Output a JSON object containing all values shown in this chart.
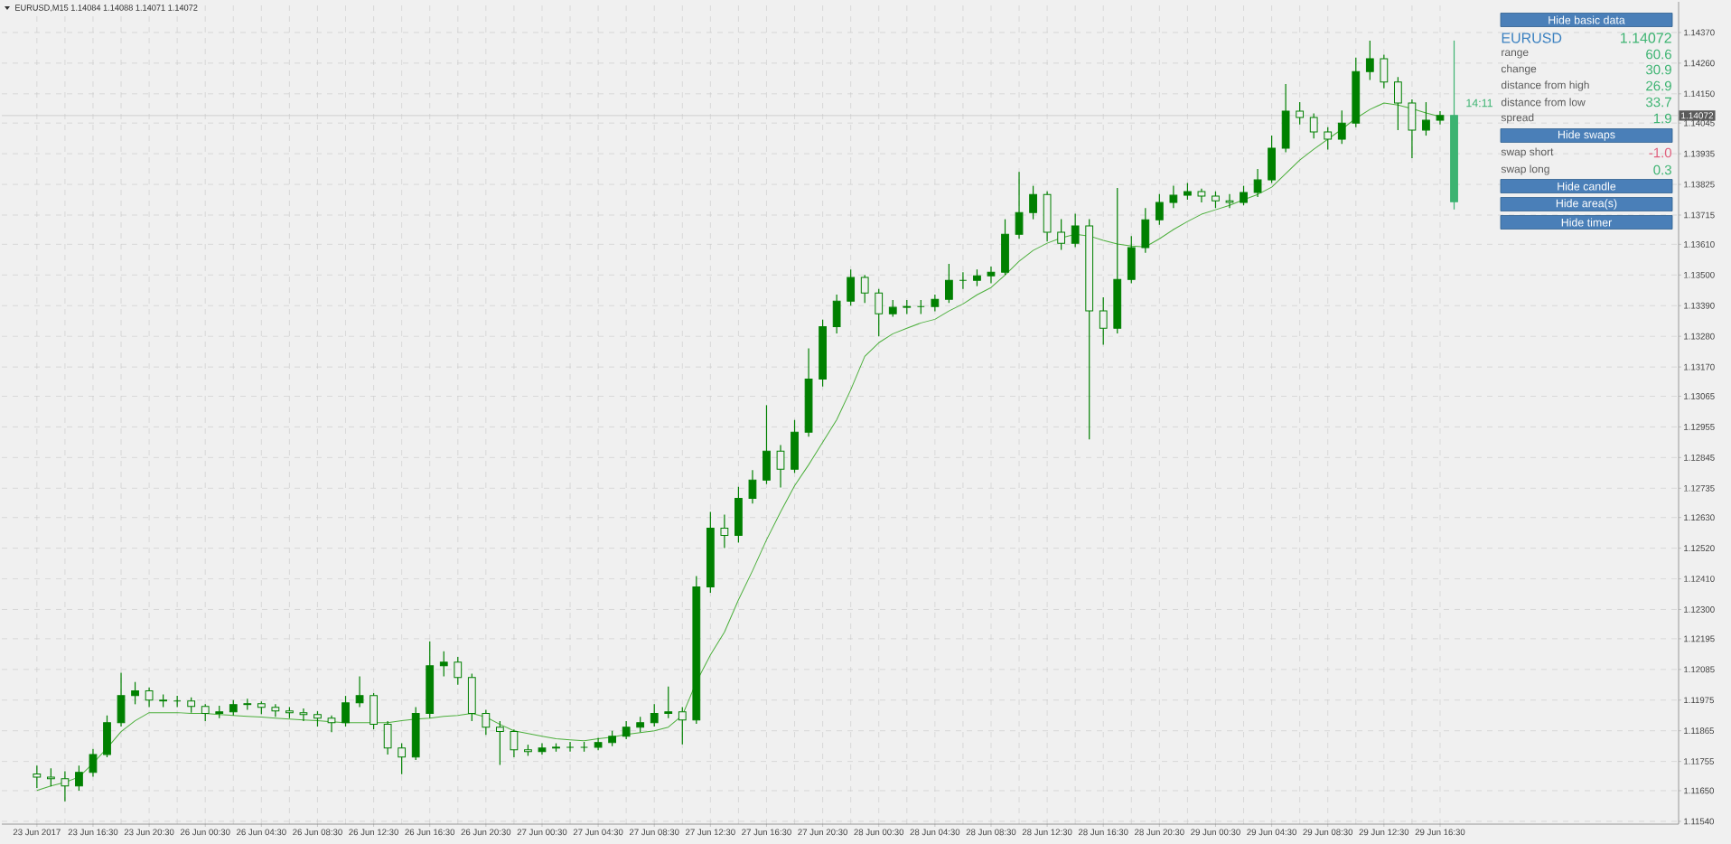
{
  "chart_data": {
    "type": "candlestick",
    "title": "EURUSD,M15  1.14084 1.14088 1.14071 1.14072",
    "categories": [
      "23 Jun 2017",
      null,
      null,
      null,
      "23 Jun 16:30",
      null,
      null,
      null,
      "23 Jun 20:30",
      null,
      null,
      null,
      "26 Jun 00:30",
      null,
      null,
      null,
      "26 Jun 04:30",
      null,
      null,
      null,
      "26 Jun 08:30",
      null,
      null,
      null,
      "26 Jun 12:30",
      null,
      null,
      null,
      "26 Jun 16:30",
      null,
      null,
      null,
      "26 Jun 20:30",
      null,
      null,
      null,
      "27 Jun 00:30",
      null,
      null,
      null,
      "27 Jun 04:30",
      null,
      null,
      null,
      "27 Jun 08:30",
      null,
      null,
      null,
      "27 Jun 12:30",
      null,
      null,
      null,
      "27 Jun 16:30",
      null,
      null,
      null,
      "27 Jun 20:30",
      null,
      null,
      null,
      "28 Jun 00:30",
      null,
      null,
      null,
      "28 Jun 04:30",
      null,
      null,
      null,
      "28 Jun 08:30",
      null,
      null,
      null,
      "28 Jun 12:30",
      null,
      null,
      null,
      "28 Jun 16:30",
      null,
      null,
      null,
      "28 Jun 20:30",
      null,
      null,
      null,
      "29 Jun 00:30",
      null,
      null,
      null,
      "29 Jun 04:30",
      null,
      null,
      null,
      "29 Jun 08:30",
      null,
      null,
      null,
      "29 Jun 12:30",
      null,
      null,
      null,
      "29 Jun 16:30",
      null
    ],
    "ohlc": [
      [
        1.1171,
        1.1174,
        1.1166,
        1.11699
      ],
      [
        1.11699,
        1.1173,
        1.11665,
        1.11693
      ],
      [
        1.11693,
        1.1172,
        1.11612,
        1.11667
      ],
      [
        1.11667,
        1.1174,
        1.1165,
        1.11716
      ],
      [
        1.11716,
        1.118,
        1.117,
        1.1178
      ],
      [
        1.1178,
        1.1192,
        1.1177,
        1.11894
      ],
      [
        1.11894,
        1.12073,
        1.1188,
        1.11991
      ],
      [
        1.11991,
        1.1204,
        1.1196,
        1.12008
      ],
      [
        1.12008,
        1.1202,
        1.1195,
        1.11975
      ],
      [
        1.11975,
        1.11995,
        1.1195,
        1.11972
      ],
      [
        1.11972,
        1.1199,
        1.1195,
        1.11972
      ],
      [
        1.11972,
        1.11985,
        1.1193,
        1.11952
      ],
      [
        1.11952,
        1.1196,
        1.119,
        1.11927
      ],
      [
        1.11927,
        1.11955,
        1.1191,
        1.11933
      ],
      [
        1.11933,
        1.11975,
        1.1192,
        1.11959
      ],
      [
        1.11959,
        1.1198,
        1.1194,
        1.11962
      ],
      [
        1.11962,
        1.1197,
        1.11925,
        1.11949
      ],
      [
        1.11949,
        1.1196,
        1.11915,
        1.11936
      ],
      [
        1.11936,
        1.1195,
        1.1191,
        1.1193
      ],
      [
        1.1193,
        1.11945,
        1.119,
        1.11923
      ],
      [
        1.11923,
        1.11935,
        1.1188,
        1.1191
      ],
      [
        1.1191,
        1.1192,
        1.1186,
        1.11894
      ],
      [
        1.11894,
        1.1199,
        1.1188,
        1.11965
      ],
      [
        1.11965,
        1.1206,
        1.1195,
        1.11991
      ],
      [
        1.11991,
        1.12,
        1.1187,
        1.11888
      ],
      [
        1.11888,
        1.119,
        1.1178,
        1.11803
      ],
      [
        1.11803,
        1.1182,
        1.11709,
        1.11771
      ],
      [
        1.11771,
        1.1195,
        1.1176,
        1.11927
      ],
      [
        1.11927,
        1.12186,
        1.1191,
        1.12098
      ],
      [
        1.12098,
        1.1215,
        1.1206,
        1.12111
      ],
      [
        1.12111,
        1.1213,
        1.1203,
        1.12056
      ],
      [
        1.12056,
        1.1207,
        1.119,
        1.11927
      ],
      [
        1.11927,
        1.1194,
        1.1185,
        1.11878
      ],
      [
        1.11878,
        1.119,
        1.11742,
        1.11862
      ],
      [
        1.11862,
        1.1187,
        1.1177,
        1.11797
      ],
      [
        1.11797,
        1.11815,
        1.11775,
        1.1179
      ],
      [
        1.1179,
        1.1182,
        1.1178,
        1.11803
      ],
      [
        1.11803,
        1.1182,
        1.1179,
        1.11806
      ],
      [
        1.11806,
        1.11825,
        1.1179,
        1.11806
      ],
      [
        1.11806,
        1.11825,
        1.1179,
        1.11806
      ],
      [
        1.11806,
        1.1184,
        1.11795,
        1.11823
      ],
      [
        1.11823,
        1.11865,
        1.1181,
        1.11845
      ],
      [
        1.11845,
        1.119,
        1.11835,
        1.11878
      ],
      [
        1.11878,
        1.11915,
        1.1186,
        1.11894
      ],
      [
        1.11894,
        1.1196,
        1.1188,
        1.11927
      ],
      [
        1.11927,
        1.12024,
        1.1191,
        1.11933
      ],
      [
        1.11933,
        1.1195,
        1.11816,
        1.11904
      ],
      [
        1.11904,
        1.1242,
        1.1189,
        1.12381
      ],
      [
        1.12381,
        1.1265,
        1.1236,
        1.12592
      ],
      [
        1.12592,
        1.1264,
        1.1252,
        1.12566
      ],
      [
        1.12566,
        1.1274,
        1.1254,
        1.12699
      ],
      [
        1.12699,
        1.128,
        1.1268,
        1.12764
      ],
      [
        1.12764,
        1.13033,
        1.1275,
        1.12868
      ],
      [
        1.12868,
        1.1289,
        1.12738,
        1.12803
      ],
      [
        1.12803,
        1.1298,
        1.1279,
        1.12936
      ],
      [
        1.12936,
        1.13237,
        1.1292,
        1.13127
      ],
      [
        1.13127,
        1.1334,
        1.131,
        1.13315
      ],
      [
        1.13315,
        1.1343,
        1.1329,
        1.13406
      ],
      [
        1.13406,
        1.1352,
        1.1339,
        1.13491
      ],
      [
        1.13491,
        1.135,
        1.134,
        1.13435
      ],
      [
        1.13435,
        1.1345,
        1.1328,
        1.13361
      ],
      [
        1.13361,
        1.1341,
        1.1335,
        1.13384
      ],
      [
        1.13384,
        1.1341,
        1.1336,
        1.13387
      ],
      [
        1.13387,
        1.1341,
        1.1336,
        1.13387
      ],
      [
        1.13387,
        1.1343,
        1.1337,
        1.13413
      ],
      [
        1.13413,
        1.1354,
        1.134,
        1.13481
      ],
      [
        1.13481,
        1.1351,
        1.1345,
        1.13481
      ],
      [
        1.13481,
        1.1352,
        1.1346,
        1.13497
      ],
      [
        1.13497,
        1.1353,
        1.1347,
        1.1351
      ],
      [
        1.1351,
        1.137,
        1.135,
        1.13646
      ],
      [
        1.13646,
        1.1387,
        1.1363,
        1.13724
      ],
      [
        1.13724,
        1.1382,
        1.137,
        1.13789
      ],
      [
        1.13789,
        1.138,
        1.1362,
        1.13653
      ],
      [
        1.13653,
        1.137,
        1.1359,
        1.13614
      ],
      [
        1.13614,
        1.1372,
        1.136,
        1.13676
      ],
      [
        1.13676,
        1.137,
        1.1291,
        1.13371
      ],
      [
        1.13371,
        1.1342,
        1.1325,
        1.13309
      ],
      [
        1.13309,
        1.13812,
        1.1329,
        1.13484
      ],
      [
        1.13484,
        1.1364,
        1.1347,
        1.13598
      ],
      [
        1.13598,
        1.1374,
        1.1358,
        1.13698
      ],
      [
        1.13698,
        1.1379,
        1.1368,
        1.1376
      ],
      [
        1.1376,
        1.1382,
        1.1374,
        1.13786
      ],
      [
        1.13786,
        1.1383,
        1.1377,
        1.13799
      ],
      [
        1.13799,
        1.1381,
        1.1376,
        1.13783
      ],
      [
        1.13783,
        1.138,
        1.1374,
        1.13766
      ],
      [
        1.13766,
        1.1379,
        1.1374,
        1.1376
      ],
      [
        1.1376,
        1.1382,
        1.1375,
        1.13796
      ],
      [
        1.13796,
        1.1388,
        1.1378,
        1.13841
      ],
      [
        1.13841,
        1.14,
        1.1383,
        1.13955
      ],
      [
        1.13955,
        1.14185,
        1.1394,
        1.14088
      ],
      [
        1.14088,
        1.1412,
        1.1404,
        1.14065
      ],
      [
        1.14065,
        1.1408,
        1.1399,
        1.14013
      ],
      [
        1.14013,
        1.1403,
        1.1395,
        1.13987
      ],
      [
        1.13987,
        1.1409,
        1.1397,
        1.14045
      ],
      [
        1.14045,
        1.1428,
        1.1403,
        1.1423
      ],
      [
        1.1423,
        1.14341,
        1.142,
        1.14276
      ],
      [
        1.14276,
        1.1429,
        1.1417,
        1.14192
      ],
      [
        1.14192,
        1.1421,
        1.1402,
        1.14117
      ],
      [
        1.14117,
        1.1413,
        1.13919,
        1.1402
      ],
      [
        1.1402,
        1.1412,
        1.14,
        1.14055
      ],
      [
        1.14055,
        1.14088,
        1.1404,
        1.14072
      ],
      [
        1.13763,
        1.14341,
        1.13735,
        1.14072
      ]
    ],
    "colors": [
      "#008000",
      "#008000",
      "#008000",
      "#008000",
      "#008000",
      "#008000",
      "#008000",
      "#008000",
      "#008000",
      "#008000",
      "#008000",
      "#008000",
      "#008000",
      "#008000",
      "#008000",
      "#008000",
      "#008000",
      "#008000",
      "#008000",
      "#008000",
      "#008000",
      "#008000",
      "#008000",
      "#008000",
      "#008000",
      "#008000",
      "#008000",
      "#008000",
      "#008000",
      "#008000",
      "#008000",
      "#008000",
      "#008000",
      "#008000",
      "#008000",
      "#008000",
      "#008000",
      "#008000",
      "#008000",
      "#008000",
      "#008000",
      "#008000",
      "#008000",
      "#008000",
      "#008000",
      "#008000",
      "#008000",
      "#008000",
      "#008000",
      "#008000",
      "#008000",
      "#008000",
      "#008000",
      "#008000",
      "#008000",
      "#008000",
      "#008000",
      "#008000",
      "#008000",
      "#008000",
      "#008000",
      "#008000",
      "#008000",
      "#008000",
      "#008000",
      "#008000",
      "#008000",
      "#008000",
      "#008000",
      "#008000",
      "#008000",
      "#008000",
      "#008000",
      "#008000",
      "#008000",
      "#008000",
      "#008000",
      "#008000",
      "#008000",
      "#008000",
      "#008000",
      "#008000",
      "#008000",
      "#008000",
      "#008000",
      "#008000",
      "#008000",
      "#008000",
      "#008000",
      "#008000",
      "#008000",
      "#008000",
      "#008000",
      "#008000",
      "#008000",
      "#008000",
      "#008000",
      "#008000",
      "#008000",
      "#008000",
      "#008000",
      "#3cb371"
    ],
    "series": [
      {
        "type": "line",
        "color": "#4caf3c",
        "values": [
          1.11651,
          1.11667,
          1.1168,
          1.11699,
          1.11748,
          1.11803,
          1.11862,
          1.11901,
          1.1193,
          1.1193,
          1.1193,
          1.11927,
          1.11927,
          1.11923,
          1.1192,
          1.11917,
          1.11914,
          1.1191,
          1.11907,
          1.11904,
          1.11901,
          1.11897,
          1.11894,
          1.11894,
          1.11894,
          1.11894,
          1.11901,
          1.11907,
          1.1191,
          1.11917,
          1.1192,
          1.11927,
          1.11914,
          1.11888,
          1.11865,
          1.11855,
          1.11845,
          1.11836,
          1.11832,
          1.11829,
          1.11836,
          1.11842,
          1.11852,
          1.11858,
          1.11865,
          1.11878,
          1.1192,
          1.1204,
          1.12137,
          1.12219,
          1.12335,
          1.12439,
          1.1255,
          1.1265,
          1.12744,
          1.12819,
          1.129,
          1.12981,
          1.13088,
          1.13208,
          1.13257,
          1.13289,
          1.13309,
          1.13328,
          1.13341,
          1.13371,
          1.13396,
          1.13429,
          1.13455,
          1.135,
          1.13549,
          1.13588,
          1.13614,
          1.13633,
          1.13646,
          1.1364,
          1.13624,
          1.13611,
          1.13604,
          1.13601,
          1.1363,
          1.13663,
          1.13692,
          1.13718,
          1.13734,
          1.1375,
          1.1377,
          1.13789,
          1.13815,
          1.13864,
          1.13912,
          1.13951,
          1.13987,
          1.14023,
          1.14062,
          1.14094,
          1.14117,
          1.1411,
          1.14097,
          1.14081,
          1.14068,
          null
        ]
      }
    ],
    "ylim": [
      1.1153,
      1.1448
    ],
    "yticks": [
      {
        "value": 1.1437,
        "label": "1.14370"
      },
      {
        "value": 1.1426,
        "label": "1.14260"
      },
      {
        "value": 1.1415,
        "label": "1.14150"
      },
      1.14045,
      1.13935,
      1.13825,
      1.13715,
      {
        "value": 1.1361,
        "label": "1.13610"
      },
      {
        "value": 1.135,
        "label": "1.13500"
      },
      {
        "value": 1.1339,
        "label": "1.13390"
      },
      {
        "value": 1.1328,
        "label": "1.13280"
      },
      {
        "value": 1.1317,
        "label": "1.13170"
      },
      1.13065,
      1.12955,
      1.12845,
      1.12735,
      {
        "value": 1.1263,
        "label": "1.12630"
      },
      {
        "value": 1.1252,
        "label": "1.12520"
      },
      {
        "value": 1.1241,
        "label": "1.12410"
      },
      {
        "value": 1.123,
        "label": "1.12300"
      },
      1.12195,
      1.12085,
      1.11975,
      1.11865,
      1.11755,
      {
        "value": 1.1165,
        "label": "1.11650"
      },
      {
        "value": 1.1154,
        "label": "1.11540"
      }
    ],
    "grid": true,
    "ref_lines": [
      {
        "axis": "y",
        "value": 1.14072,
        "label": "1.14072",
        "color": "#c8c8c8"
      }
    ],
    "annotations": [
      "Hide basic data",
      "EURUSD",
      "1.14072",
      "range",
      "60.6",
      "change",
      "30.9",
      "distance from high",
      "26.9",
      "distance from low",
      "33.7",
      "spread",
      "1.9",
      "Hide swaps",
      "swap short",
      "-1.0",
      "swap long",
      "0.3",
      "Hide candle",
      "Hide area(s)",
      "Hide timer",
      "14:11"
    ]
  }
}
